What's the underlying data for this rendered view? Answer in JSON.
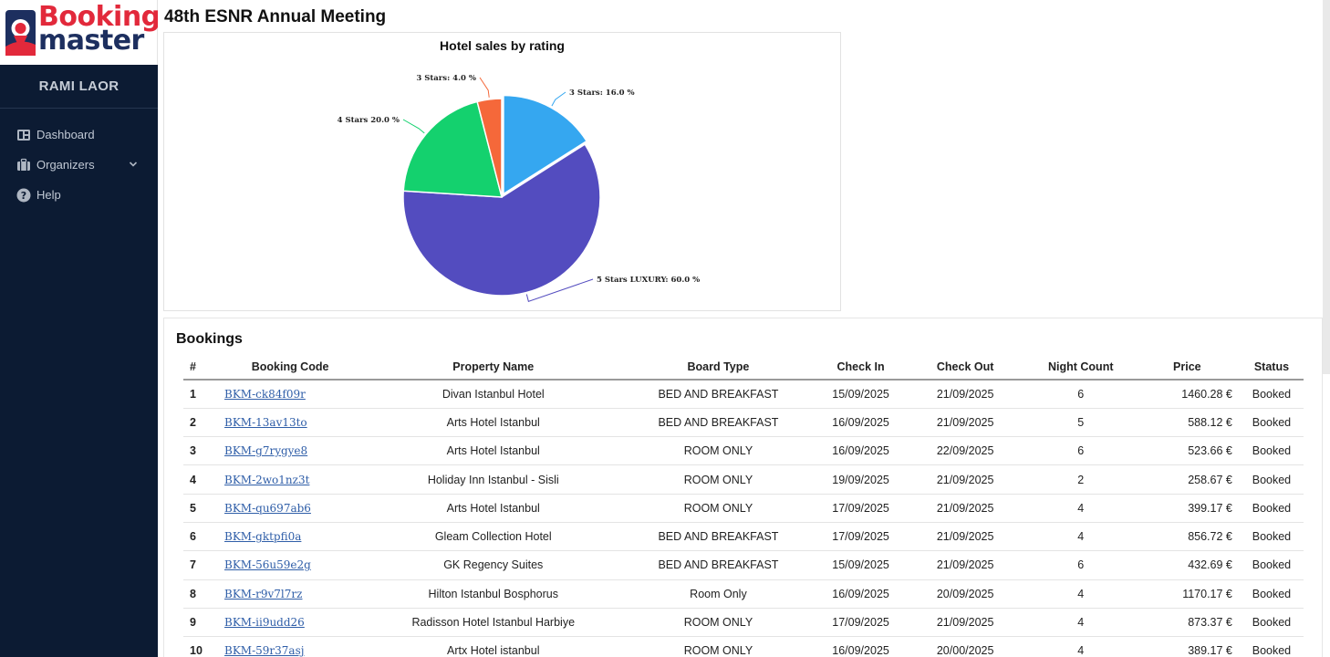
{
  "brand": {
    "line1": "Booking",
    "line2": "master"
  },
  "user": {
    "name": "RAMI LAOR"
  },
  "nav": [
    {
      "label": "Dashboard",
      "icon": "dashboard-icon"
    },
    {
      "label": "Organizers",
      "icon": "briefcase-icon",
      "has_submenu": true
    },
    {
      "label": "Help",
      "icon": "help-icon"
    }
  ],
  "page": {
    "title": "48th ESNR Annual Meeting"
  },
  "chart_data": {
    "type": "pie",
    "title": "Hotel sales by rating",
    "slices": [
      {
        "label": "3 Stars: 16.0 %",
        "value": 16.0,
        "color": "#35a7f0"
      },
      {
        "label": "5 Stars LUXURY: 60.0 %",
        "value": 60.0,
        "color": "#534cbf"
      },
      {
        "label": "4 Stars 20.0 %",
        "value": 20.0,
        "color": "#14d16e"
      },
      {
        "label": "3 Stars: 4.0 %",
        "value": 4.0,
        "color": "#f5683a"
      }
    ]
  },
  "bookings": {
    "title": "Bookings",
    "columns": [
      "#",
      "Booking Code",
      "Property Name",
      "Board Type",
      "Check In",
      "Check Out",
      "Night Count",
      "Price",
      "Status"
    ],
    "rows": [
      {
        "n": "1",
        "code": "BKM-ck84f09r",
        "property": "Divan Istanbul Hotel",
        "board": "BED AND BREAKFAST",
        "check_in": "15/09/2025",
        "check_out": "21/09/2025",
        "nights": "6",
        "price": "1460.28 €",
        "status": "Booked"
      },
      {
        "n": "2",
        "code": "BKM-13av13to",
        "property": "Arts Hotel Istanbul",
        "board": "BED AND BREAKFAST",
        "check_in": "16/09/2025",
        "check_out": "21/09/2025",
        "nights": "5",
        "price": "588.12 €",
        "status": "Booked"
      },
      {
        "n": "3",
        "code": "BKM-g7rygye8",
        "property": "Arts Hotel Istanbul",
        "board": "ROOM ONLY",
        "check_in": "16/09/2025",
        "check_out": "22/09/2025",
        "nights": "6",
        "price": "523.66 €",
        "status": "Booked"
      },
      {
        "n": "4",
        "code": "BKM-2wo1nz3t",
        "property": "Holiday Inn Istanbul - Sisli",
        "board": "ROOM ONLY",
        "check_in": "19/09/2025",
        "check_out": "21/09/2025",
        "nights": "2",
        "price": "258.67 €",
        "status": "Booked"
      },
      {
        "n": "5",
        "code": "BKM-qu697ab6",
        "property": "Arts Hotel Istanbul",
        "board": "ROOM ONLY",
        "check_in": "17/09/2025",
        "check_out": "21/09/2025",
        "nights": "4",
        "price": "399.17 €",
        "status": "Booked"
      },
      {
        "n": "6",
        "code": "BKM-gktpfi0a",
        "property": "Gleam Collection Hotel",
        "board": "BED AND BREAKFAST",
        "check_in": "17/09/2025",
        "check_out": "21/09/2025",
        "nights": "4",
        "price": "856.72 €",
        "status": "Booked"
      },
      {
        "n": "7",
        "code": "BKM-56u59e2g",
        "property": "GK Regency Suites",
        "board": "BED AND BREAKFAST",
        "check_in": "15/09/2025",
        "check_out": "21/09/2025",
        "nights": "6",
        "price": "432.69 €",
        "status": "Booked"
      },
      {
        "n": "8",
        "code": "BKM-r9v7l7rz",
        "property": "Hilton Istanbul Bosphorus",
        "board": "Room Only",
        "check_in": "16/09/2025",
        "check_out": "20/09/2025",
        "nights": "4",
        "price": "1170.17 €",
        "status": "Booked"
      },
      {
        "n": "9",
        "code": "BKM-ii9udd26",
        "property": "Radisson Hotel Istanbul Harbiye",
        "board": "ROOM ONLY",
        "check_in": "17/09/2025",
        "check_out": "21/09/2025",
        "nights": "4",
        "price": "873.37 €",
        "status": "Booked"
      },
      {
        "n": "10",
        "code": "BKM-59r37asj",
        "property": "Artx Hotel istanbul",
        "board": "ROOM ONLY",
        "check_in": "16/09/2025",
        "check_out": "20/00/2025",
        "nights": "4",
        "price": "389.17 €",
        "status": "Booked"
      }
    ]
  }
}
